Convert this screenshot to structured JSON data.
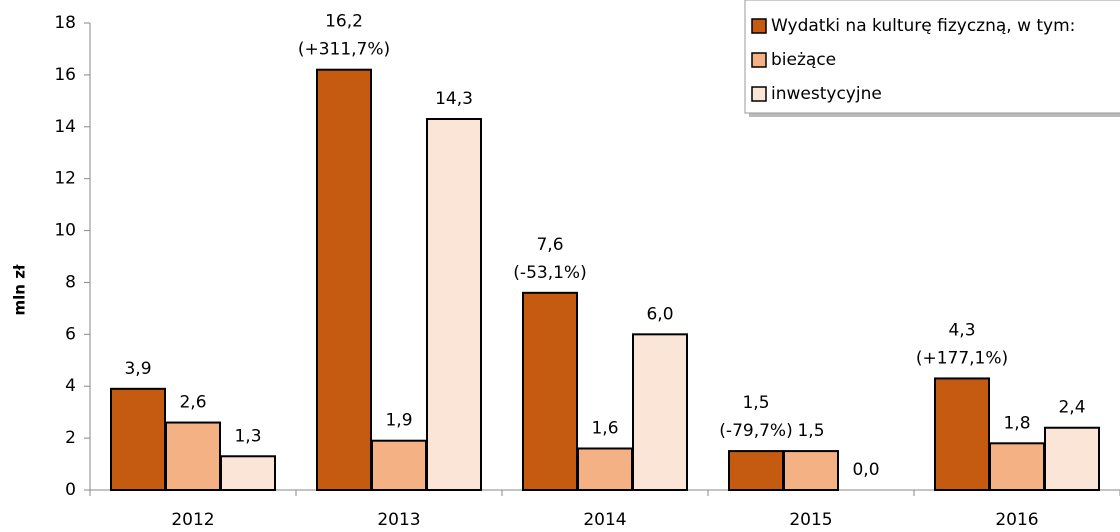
{
  "chart_data": {
    "type": "bar",
    "y_label": "mln zł",
    "categories": [
      "2012",
      "2013",
      "2014",
      "2015",
      "2016"
    ],
    "series": [
      {
        "name": "Wydatki na kulturę fizyczną, w tym:",
        "color": "#c55a11",
        "values": [
          3.9,
          16.2,
          7.6,
          1.5,
          4.3
        ],
        "value_labels": [
          "3,9",
          "16,2",
          "7,6",
          "1,5",
          "4,3"
        ],
        "annotations": [
          null,
          "(+311,7%)",
          "(-53,1%)",
          "(-79,7%)",
          "(+177,1%)"
        ]
      },
      {
        "name": "bieżące",
        "color": "#f4b183",
        "values": [
          2.6,
          1.9,
          1.6,
          1.5,
          1.8
        ],
        "value_labels": [
          "2,6",
          "1,9",
          "1,6",
          "1,5",
          "1,8"
        ]
      },
      {
        "name": "inwestycyjne",
        "color": "#fbe5d6",
        "values": [
          1.3,
          14.3,
          6.0,
          0.0,
          2.4
        ],
        "value_labels": [
          "1,3",
          "14,3",
          "6,0",
          "0,0",
          "2,4"
        ]
      }
    ],
    "ylim": [
      0,
      18
    ],
    "yticks": [
      0,
      2,
      4,
      6,
      8,
      10,
      12,
      14,
      16,
      18
    ],
    "grid": false,
    "legend": "top-right"
  }
}
